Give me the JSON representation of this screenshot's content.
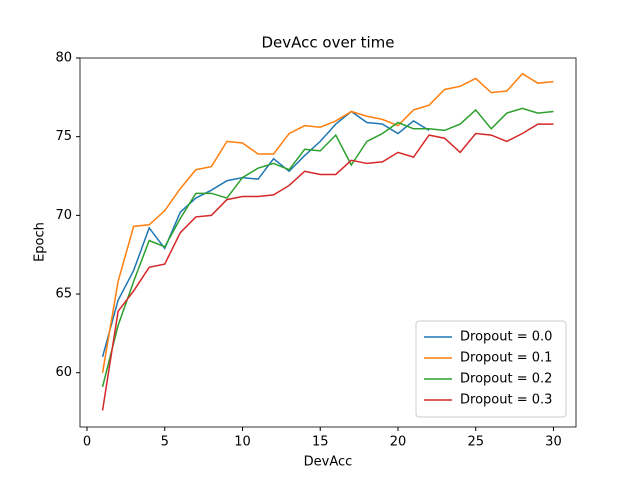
{
  "chart_data": {
    "type": "line",
    "title": "DevAcc over time",
    "xlabel": "DevAcc",
    "ylabel": "Epoch",
    "x": [
      1,
      2,
      3,
      4,
      5,
      6,
      7,
      8,
      9,
      10,
      11,
      12,
      13,
      14,
      15,
      16,
      17,
      18,
      19,
      20,
      21,
      22,
      23,
      24,
      25,
      26,
      27,
      28,
      29,
      30
    ],
    "series": [
      {
        "name": "Dropout = 0.0",
        "color": "#1f77b4",
        "values": [
          61.0,
          64.6,
          66.5,
          69.2,
          67.9,
          70.2,
          71.1,
          71.6,
          72.2,
          72.4,
          72.3,
          73.6,
          72.8,
          73.8,
          74.7,
          75.8,
          76.6,
          75.9,
          75.8,
          75.2,
          76.0,
          75.4,
          null,
          null,
          null,
          null,
          null,
          null,
          null,
          null
        ]
      },
      {
        "name": "Dropout = 0.1",
        "color": "#ff7f0e",
        "values": [
          60.0,
          65.8,
          69.3,
          69.4,
          70.3,
          71.7,
          72.9,
          73.1,
          74.7,
          74.6,
          73.9,
          73.9,
          75.2,
          75.7,
          75.6,
          76.0,
          76.6,
          76.3,
          76.1,
          75.7,
          76.7,
          77.0,
          78.0,
          78.2,
          78.7,
          77.8,
          77.9,
          79.0,
          78.4,
          78.5
        ]
      },
      {
        "name": "Dropout = 0.2",
        "color": "#2ca02c",
        "values": [
          59.1,
          63.0,
          65.8,
          68.4,
          68.0,
          69.8,
          71.4,
          71.4,
          71.1,
          72.4,
          73.0,
          73.3,
          72.9,
          74.2,
          74.1,
          75.1,
          73.2,
          74.7,
          75.2,
          75.9,
          75.5,
          75.5,
          75.4,
          75.8,
          76.7,
          75.5,
          76.5,
          76.8,
          76.5,
          76.6
        ]
      },
      {
        "name": "Dropout = 0.3",
        "color": "#d62728",
        "values": [
          57.6,
          63.9,
          65.2,
          66.7,
          66.9,
          68.9,
          69.9,
          70.0,
          71.0,
          71.2,
          71.2,
          71.3,
          71.9,
          72.8,
          72.6,
          72.6,
          73.5,
          73.3,
          73.4,
          74.0,
          73.7,
          75.1,
          74.9,
          74.0,
          75.2,
          75.1,
          74.7,
          75.2,
          75.8,
          75.8
        ]
      }
    ],
    "xlim": [
      -0.45,
      31.45
    ],
    "xticks": [
      0,
      5,
      10,
      15,
      20,
      25,
      30
    ],
    "ylim": [
      56.55,
      80.0
    ],
    "yticks": [
      60,
      65,
      70,
      75,
      80
    ],
    "grid": false,
    "legend": "lower right"
  }
}
